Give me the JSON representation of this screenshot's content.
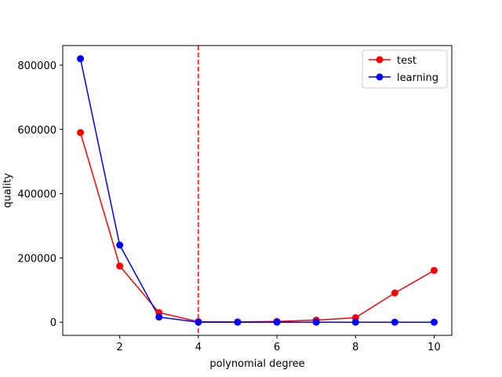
{
  "chart_data": {
    "type": "line",
    "title": "",
    "xlabel": "polynomial degree",
    "ylabel": "quality",
    "xlim": [
      0.55,
      10.45
    ],
    "ylim": [
      -41000,
      861000
    ],
    "x": [
      1,
      2,
      3,
      4,
      5,
      6,
      7,
      8,
      9,
      10
    ],
    "x_ticks": [
      2,
      4,
      6,
      8,
      10
    ],
    "y_ticks": [
      0,
      200000,
      400000,
      600000,
      800000
    ],
    "series": [
      {
        "name": "test",
        "color": "#ff0000",
        "marker": "circle",
        "values": [
          590000,
          175000,
          30000,
          1500,
          1000,
          2500,
          6500,
          14000,
          91000,
          161000
        ]
      },
      {
        "name": "learning",
        "color": "#0000ff",
        "marker": "circle",
        "values": [
          820000,
          240000,
          16000,
          0,
          0,
          0,
          0,
          0,
          0,
          0
        ]
      }
    ],
    "vline": {
      "x": 4,
      "color": "#ff0000",
      "style": "dashed"
    },
    "legend": {
      "position": "top-right"
    },
    "grid": false
  }
}
